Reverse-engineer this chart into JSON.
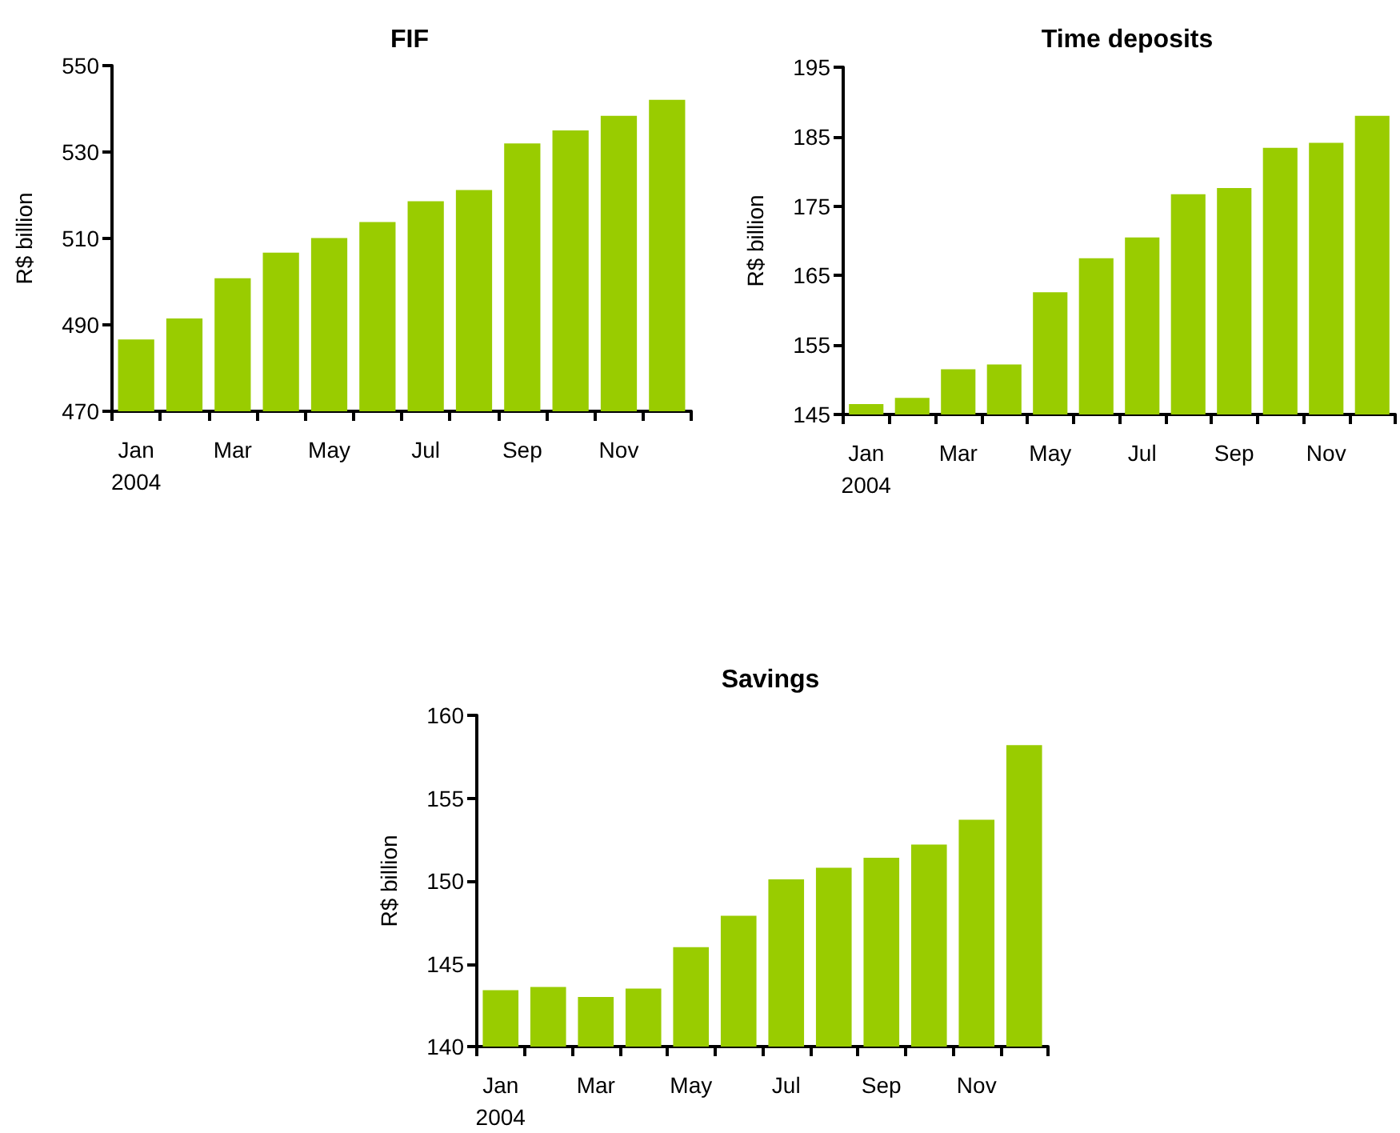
{
  "chart_data": [
    {
      "type": "bar",
      "title": "FIF",
      "ylabel": "R$ billion",
      "categories": [
        "Jan\n2004",
        null,
        "Mar",
        null,
        "May",
        null,
        "Jul",
        null,
        "Sep",
        null,
        "Nov",
        null
      ],
      "color": "#99cc00",
      "values": [
        486.6,
        491.5,
        500.8,
        506.7,
        510.1,
        513.8,
        518.6,
        521.2,
        532,
        535,
        538.4,
        542.1
      ],
      "ylim": [
        470,
        550
      ],
      "yticks": [
        470,
        490,
        510,
        530,
        550
      ],
      "grid": false
    },
    {
      "type": "bar",
      "title": "Time deposits",
      "ylabel": "R$ billion",
      "categories": [
        "Jan\n2004",
        null,
        "Mar",
        null,
        "May",
        null,
        "Jul",
        null,
        "Sep",
        null,
        "Nov",
        null
      ],
      "color": "#99cc00",
      "values": [
        146.5,
        147.4,
        151.5,
        152.2,
        162.6,
        167.5,
        170.5,
        176.7,
        177.6,
        183.4,
        184.1,
        188
      ],
      "ylim": [
        145,
        195
      ],
      "yticks": [
        145,
        155,
        165,
        175,
        185,
        195
      ],
      "grid": false
    },
    {
      "type": "bar",
      "title": "Savings",
      "ylabel": "R$ billion",
      "categories": [
        "Jan\n2004",
        null,
        "Mar",
        null,
        "May",
        null,
        "Jul",
        null,
        "Sep",
        null,
        "Nov",
        null
      ],
      "color": "#99cc00",
      "values": [
        143.4,
        143.6,
        143.0,
        143.5,
        146.0,
        147.9,
        150.1,
        150.8,
        151.4,
        152.2,
        153.7,
        158.2
      ],
      "ylim": [
        140,
        160
      ],
      "yticks": [
        140,
        145,
        150,
        155,
        160
      ],
      "grid": false
    }
  ]
}
